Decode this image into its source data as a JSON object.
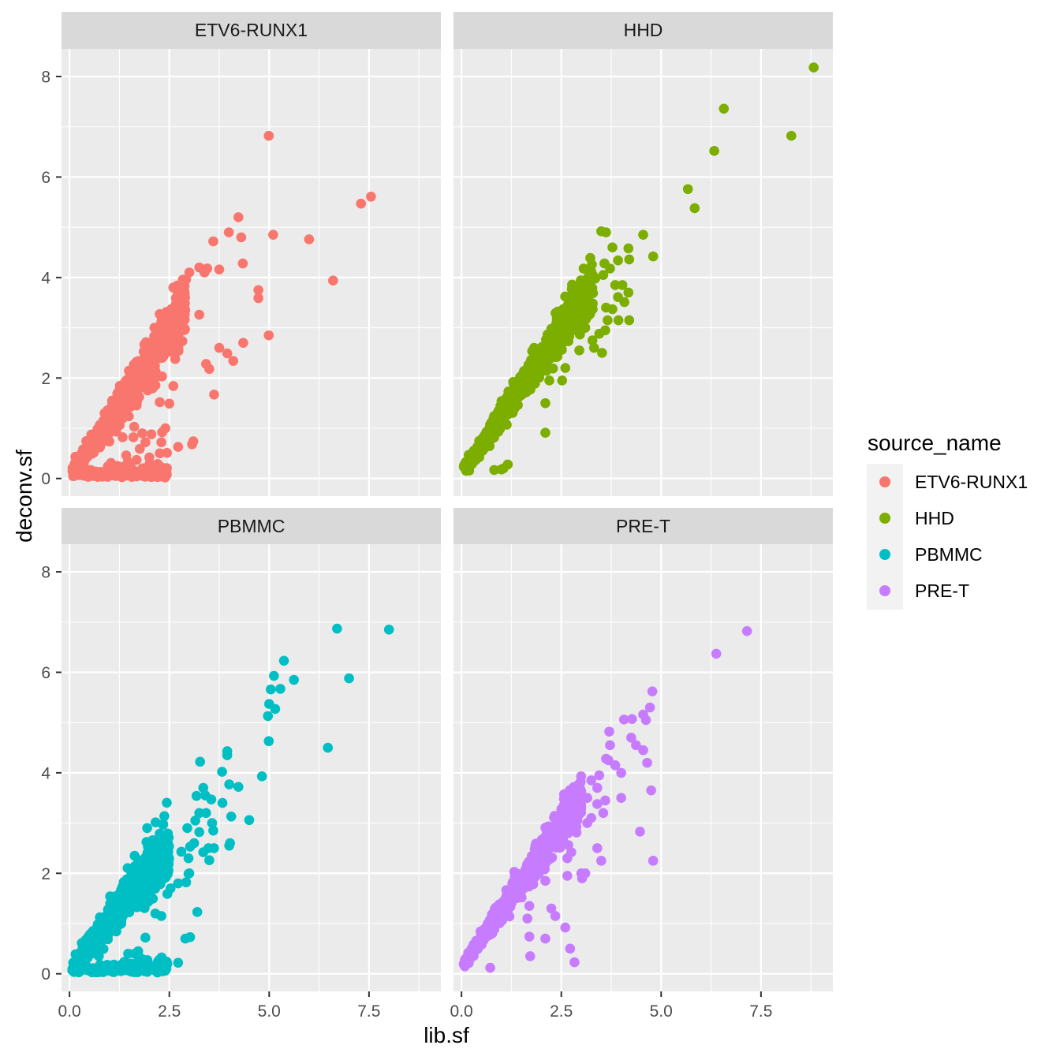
{
  "chart_data": {
    "type": "scatter",
    "xlabel": "lib.sf",
    "ylabel": "deconv.sf",
    "xlim": [
      -0.2,
      9.3
    ],
    "ylim": [
      -0.35,
      8.55
    ],
    "x_ticks": [
      0.0,
      2.5,
      5.0,
      7.5
    ],
    "x_tick_labels": [
      "0.0",
      "2.5",
      "5.0",
      "7.5"
    ],
    "y_ticks": [
      0,
      2,
      4,
      6,
      8
    ],
    "y_tick_labels": [
      "0",
      "2",
      "4",
      "6",
      "8"
    ],
    "grid": true,
    "legend": {
      "title": "source_name",
      "position": "right",
      "entries": [
        {
          "name": "ETV6-RUNX1",
          "color": "#F8766D"
        },
        {
          "name": "HHD",
          "color": "#7CAE00"
        },
        {
          "name": "PBMMC",
          "color": "#00BFC4"
        },
        {
          "name": "PRE-T",
          "color": "#C77CFF"
        }
      ]
    },
    "panels": [
      {
        "name": "ETV6-RUNX1",
        "color": "#F8766D",
        "points": [
          [
            4.99,
            6.82
          ],
          [
            7.55,
            5.61
          ],
          [
            7.3,
            5.47
          ],
          [
            4.23,
            5.2
          ],
          [
            3.99,
            4.9
          ],
          [
            4.3,
            4.8
          ],
          [
            5.1,
            4.85
          ],
          [
            6.0,
            4.76
          ],
          [
            3.6,
            4.72
          ],
          [
            4.34,
            4.28
          ],
          [
            3.25,
            4.2
          ],
          [
            3.45,
            4.18
          ],
          [
            3.75,
            4.16
          ],
          [
            3.0,
            4.1
          ],
          [
            3.38,
            4.1
          ],
          [
            2.92,
            3.96
          ],
          [
            6.6,
            3.94
          ],
          [
            4.73,
            3.75
          ],
          [
            4.73,
            3.59
          ],
          [
            2.7,
            3.84
          ],
          [
            2.6,
            3.8
          ],
          [
            3.25,
            3.26
          ],
          [
            4.99,
            2.85
          ],
          [
            3.75,
            2.6
          ],
          [
            4.35,
            2.7
          ],
          [
            3.95,
            2.49
          ],
          [
            4.1,
            2.34
          ],
          [
            3.42,
            2.28
          ],
          [
            3.5,
            2.18
          ],
          [
            3.62,
            1.67
          ],
          [
            2.6,
            1.84
          ],
          [
            2.26,
            1.52
          ],
          [
            2.5,
            1.49
          ],
          [
            2.4,
            1.0
          ],
          [
            2.32,
            0.92
          ],
          [
            2.05,
            0.88
          ],
          [
            1.82,
            0.9
          ],
          [
            1.62,
            1.03
          ],
          [
            1.33,
            0.82
          ],
          [
            1.6,
            0.82
          ],
          [
            1.9,
            0.72
          ],
          [
            2.3,
            0.72
          ],
          [
            3.1,
            0.74
          ],
          [
            3.07,
            0.68
          ],
          [
            2.72,
            0.63
          ],
          [
            1.76,
            0.59
          ],
          [
            2.26,
            0.5
          ],
          [
            2.44,
            0.51
          ],
          [
            1.42,
            0.46
          ],
          [
            2.0,
            0.42
          ],
          [
            1.68,
            0.37
          ],
          [
            1.46,
            0.33
          ],
          [
            1.04,
            0.31
          ],
          [
            0.96,
            0.24
          ],
          [
            1.2,
            0.25
          ]
        ],
        "bands": [
          {
            "x": [
              0.05,
              2.9
            ],
            "slope": 1.16,
            "intercept": 0.02,
            "noise": 0.22,
            "n": 750
          },
          {
            "x": [
              0.25,
              2.45
            ],
            "slope": 0.04,
            "intercept": 0.05,
            "noise": 0.07,
            "n": 160
          }
        ]
      },
      {
        "name": "HHD",
        "color": "#7CAE00",
        "points": [
          [
            8.82,
            8.18
          ],
          [
            6.57,
            7.36
          ],
          [
            6.33,
            6.52
          ],
          [
            8.26,
            6.82
          ],
          [
            5.67,
            5.76
          ],
          [
            5.84,
            5.38
          ],
          [
            3.5,
            4.92
          ],
          [
            3.62,
            4.9
          ],
          [
            4.55,
            4.85
          ],
          [
            4.18,
            4.58
          ],
          [
            3.78,
            4.6
          ],
          [
            4.2,
            4.36
          ],
          [
            3.92,
            4.34
          ],
          [
            4.8,
            4.42
          ],
          [
            3.72,
            4.18
          ],
          [
            3.58,
            4.28
          ],
          [
            3.25,
            4.12
          ],
          [
            3.55,
            4.05
          ],
          [
            3.35,
            3.98
          ],
          [
            3.85,
            3.85
          ],
          [
            4.03,
            3.85
          ],
          [
            4.18,
            3.7
          ],
          [
            4.08,
            3.51
          ],
          [
            3.92,
            3.61
          ],
          [
            3.62,
            3.4
          ],
          [
            3.78,
            3.37
          ],
          [
            4.2,
            3.15
          ],
          [
            3.93,
            3.15
          ],
          [
            3.66,
            3.15
          ],
          [
            3.6,
            2.95
          ],
          [
            3.45,
            2.88
          ],
          [
            3.28,
            2.75
          ],
          [
            3.32,
            2.6
          ],
          [
            3.52,
            2.5
          ],
          [
            3.1,
            3.0
          ],
          [
            3.0,
            2.95
          ],
          [
            2.95,
            2.55
          ],
          [
            2.6,
            2.2
          ],
          [
            2.52,
            1.95
          ],
          [
            2.2,
            1.95
          ],
          [
            2.1,
            1.5
          ],
          [
            2.1,
            0.91
          ],
          [
            1.16,
            0.28
          ],
          [
            1.0,
            0.18
          ],
          [
            0.82,
            0.17
          ],
          [
            1.05,
            0.2
          ]
        ],
        "bands": [
          {
            "x": [
              0.05,
              3.3
            ],
            "slope": 1.14,
            "intercept": 0.1,
            "noise": 0.16,
            "n": 700
          }
        ]
      },
      {
        "name": "PBMMC",
        "color": "#00BFC4",
        "points": [
          [
            6.7,
            6.87
          ],
          [
            8.0,
            6.85
          ],
          [
            5.37,
            6.23
          ],
          [
            5.12,
            5.93
          ],
          [
            5.62,
            5.85
          ],
          [
            5.28,
            5.67
          ],
          [
            5.04,
            5.66
          ],
          [
            7.0,
            5.88
          ],
          [
            5.0,
            5.37
          ],
          [
            5.15,
            5.27
          ],
          [
            4.97,
            5.13
          ],
          [
            4.99,
            4.63
          ],
          [
            6.47,
            4.5
          ],
          [
            3.95,
            4.43
          ],
          [
            3.95,
            4.35
          ],
          [
            3.27,
            4.22
          ],
          [
            3.82,
            4.02
          ],
          [
            4.82,
            3.93
          ],
          [
            4.0,
            3.77
          ],
          [
            4.23,
            3.72
          ],
          [
            3.35,
            3.7
          ],
          [
            3.4,
            3.55
          ],
          [
            3.18,
            3.54
          ],
          [
            3.55,
            3.47
          ],
          [
            3.83,
            3.4
          ],
          [
            3.25,
            3.2
          ],
          [
            3.42,
            3.2
          ],
          [
            3.15,
            3.05
          ],
          [
            4.05,
            3.13
          ],
          [
            4.5,
            3.06
          ],
          [
            3.57,
            3.0
          ],
          [
            2.95,
            2.9
          ],
          [
            3.6,
            2.85
          ],
          [
            3.25,
            2.82
          ],
          [
            3.12,
            2.6
          ],
          [
            3.48,
            2.5
          ],
          [
            3.62,
            2.5
          ],
          [
            3.35,
            2.42
          ],
          [
            3.5,
            2.26
          ],
          [
            4.0,
            2.55
          ],
          [
            4.02,
            2.6
          ],
          [
            3.02,
            2.53
          ],
          [
            2.8,
            2.43
          ],
          [
            2.98,
            2.3
          ],
          [
            3.0,
            2.0
          ],
          [
            2.98,
            1.99
          ],
          [
            2.72,
            1.8
          ],
          [
            2.92,
            1.82
          ],
          [
            2.53,
            1.7
          ],
          [
            2.45,
            1.59
          ],
          [
            3.2,
            1.23
          ],
          [
            2.15,
            1.2
          ],
          [
            2.3,
            1.15
          ],
          [
            2.9,
            0.7
          ],
          [
            3.02,
            0.73
          ],
          [
            1.9,
            0.72
          ],
          [
            1.72,
            0.45
          ],
          [
            1.63,
            0.4
          ],
          [
            1.47,
            0.4
          ],
          [
            1.8,
            0.3
          ],
          [
            1.37,
            0.23
          ],
          [
            2.72,
            0.22
          ],
          [
            2.45,
            0.2
          ],
          [
            2.23,
            0.18
          ],
          [
            1.88,
            0.27
          ]
        ],
        "bands": [
          {
            "x": [
              0.05,
              2.5
            ],
            "slope": 1.0,
            "intercept": 0.05,
            "noise": 0.24,
            "n": 520
          },
          {
            "x": [
              0.1,
              2.45
            ],
            "slope": 0.03,
            "intercept": 0.08,
            "noise": 0.06,
            "n": 190
          }
        ]
      },
      {
        "name": "PRE-T",
        "color": "#C77CFF",
        "points": [
          [
            7.15,
            6.82
          ],
          [
            6.38,
            6.37
          ],
          [
            4.78,
            5.62
          ],
          [
            4.72,
            5.3
          ],
          [
            4.55,
            5.16
          ],
          [
            4.62,
            5.05
          ],
          [
            4.07,
            5.06
          ],
          [
            4.27,
            5.07
          ],
          [
            3.7,
            4.82
          ],
          [
            4.25,
            4.7
          ],
          [
            4.37,
            4.55
          ],
          [
            3.72,
            4.55
          ],
          [
            4.55,
            4.45
          ],
          [
            3.62,
            4.28
          ],
          [
            3.68,
            4.25
          ],
          [
            4.65,
            4.2
          ],
          [
            3.85,
            4.15
          ],
          [
            4.0,
            4.0
          ],
          [
            3.45,
            3.95
          ],
          [
            3.25,
            3.85
          ],
          [
            3.4,
            3.7
          ],
          [
            4.0,
            3.5
          ],
          [
            3.6,
            3.45
          ],
          [
            4.75,
            3.65
          ],
          [
            3.15,
            3.5
          ],
          [
            3.4,
            3.38
          ],
          [
            3.55,
            3.2
          ],
          [
            3.0,
            3.3
          ],
          [
            3.25,
            3.1
          ],
          [
            3.15,
            3.0
          ],
          [
            2.85,
            2.85
          ],
          [
            2.5,
            2.8
          ],
          [
            4.47,
            2.83
          ],
          [
            3.4,
            2.5
          ],
          [
            2.75,
            2.42
          ],
          [
            2.65,
            2.3
          ],
          [
            3.0,
            2.0
          ],
          [
            3.1,
            2.0
          ],
          [
            3.02,
            1.9
          ],
          [
            3.5,
            2.25
          ],
          [
            4.8,
            2.25
          ],
          [
            2.65,
            1.95
          ],
          [
            2.1,
            1.85
          ],
          [
            2.25,
            1.3
          ],
          [
            1.7,
            1.35
          ],
          [
            2.35,
            1.15
          ],
          [
            1.65,
            1.1
          ],
          [
            2.6,
            0.92
          ],
          [
            2.1,
            0.7
          ],
          [
            1.7,
            0.74
          ],
          [
            1.72,
            0.35
          ],
          [
            2.72,
            0.5
          ],
          [
            2.83,
            0.23
          ],
          [
            0.72,
            0.12
          ]
        ],
        "bands": [
          {
            "x": [
              0.05,
              3.0
            ],
            "slope": 1.14,
            "intercept": 0.12,
            "noise": 0.15,
            "n": 800
          }
        ]
      }
    ]
  }
}
